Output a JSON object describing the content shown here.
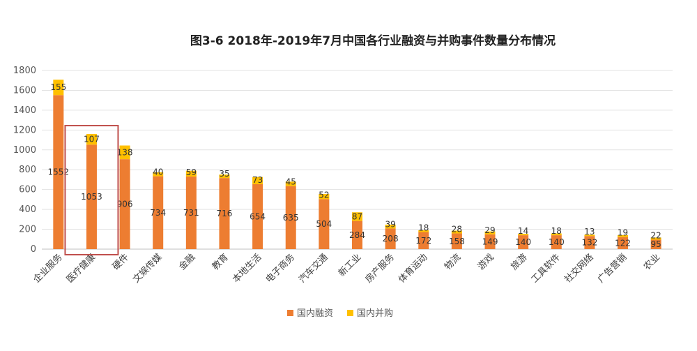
{
  "chart_data": {
    "type": "bar",
    "stacked": true,
    "title": "图3-6 2018年-2019年7月中国各行业融资与并购事件数量分布情况",
    "xlabel": "",
    "ylabel": "",
    "ylim": [
      0,
      1800
    ],
    "yticks": [
      0,
      200,
      400,
      600,
      800,
      1000,
      1200,
      1400,
      1600,
      1800
    ],
    "grid": true,
    "legend_position": "bottom",
    "categories": [
      "企业服务",
      "医疗健康",
      "硬件",
      "文娱传媒",
      "金融",
      "教育",
      "本地生活",
      "电子商务",
      "汽车交通",
      "新工业",
      "房产服务",
      "体育运动",
      "物流",
      "游戏",
      "旅游",
      "工具软件",
      "社交网络",
      "广告营销",
      "农业"
    ],
    "series": [
      {
        "name": "国内融资",
        "color": "#ED7D31",
        "values": [
          1552,
          1053,
          906,
          734,
          731,
          716,
          654,
          635,
          504,
          284,
          208,
          172,
          158,
          149,
          140,
          140,
          132,
          122,
          95
        ]
      },
      {
        "name": "国内并购",
        "color": "#FFC000",
        "values": [
          155,
          107,
          138,
          40,
          59,
          35,
          73,
          45,
          52,
          87,
          39,
          18,
          28,
          29,
          14,
          18,
          13,
          19,
          22
        ]
      }
    ],
    "highlighted_category": "医疗健康",
    "highlight_color": "#C0504D"
  }
}
